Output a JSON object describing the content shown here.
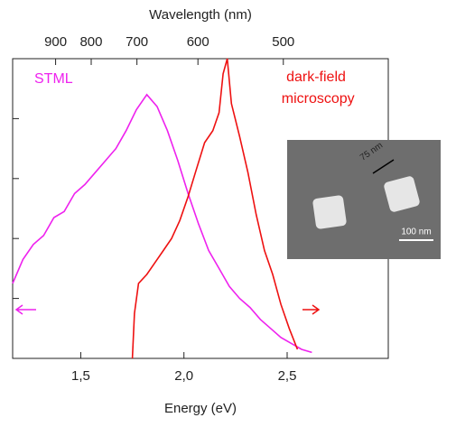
{
  "chart_data": {
    "type": "line",
    "xlabel": "Energy (eV)",
    "x2label": "Wavelength (nm)",
    "xlim": [
      1.17,
      2.99
    ],
    "xticks": [
      {
        "value": 1.5,
        "label": "1,5"
      },
      {
        "value": 2.0,
        "label": "2,0"
      },
      {
        "value": 2.5,
        "label": "2,5"
      }
    ],
    "x2lim": [
      1060,
      415
    ],
    "x2scale": "reciprocal",
    "x2ticks": [
      900,
      800,
      700,
      600,
      500
    ],
    "ylim": [
      0,
      1
    ],
    "yticks": [
      0.2,
      0.4,
      0.6,
      0.8,
      1
    ],
    "series": [
      {
        "name": "STML",
        "color": "#ee22ee",
        "x": [
          1.17,
          1.22,
          1.27,
          1.32,
          1.37,
          1.42,
          1.47,
          1.52,
          1.57,
          1.62,
          1.67,
          1.72,
          1.77,
          1.82,
          1.87,
          1.92,
          1.97,
          2.02,
          2.07,
          2.12,
          2.17,
          2.22,
          2.27,
          2.32,
          2.37,
          2.42,
          2.47,
          2.52,
          2.57,
          2.62
        ],
        "values": [
          0.25,
          0.33,
          0.38,
          0.41,
          0.47,
          0.49,
          0.55,
          0.58,
          0.62,
          0.66,
          0.7,
          0.76,
          0.83,
          0.88,
          0.84,
          0.76,
          0.66,
          0.55,
          0.45,
          0.36,
          0.3,
          0.24,
          0.2,
          0.17,
          0.13,
          0.1,
          0.07,
          0.05,
          0.03,
          0.02
        ]
      },
      {
        "name": "dark-field microscopy",
        "color": "#ee1111",
        "x": [
          1.75,
          1.76,
          1.78,
          1.82,
          1.86,
          1.9,
          1.94,
          1.98,
          2.02,
          2.06,
          2.1,
          2.14,
          2.17,
          2.19,
          2.21,
          2.23,
          2.27,
          2.31,
          2.35,
          2.39,
          2.43,
          2.47,
          2.51,
          2.55
        ],
        "values": [
          0.0,
          0.15,
          0.25,
          0.28,
          0.32,
          0.36,
          0.4,
          0.46,
          0.54,
          0.63,
          0.72,
          0.76,
          0.82,
          0.95,
          1.0,
          0.85,
          0.74,
          0.62,
          0.48,
          0.36,
          0.28,
          0.18,
          0.1,
          0.03
        ]
      }
    ],
    "inset_labels": [
      "75 nm",
      "100 nm"
    ]
  }
}
